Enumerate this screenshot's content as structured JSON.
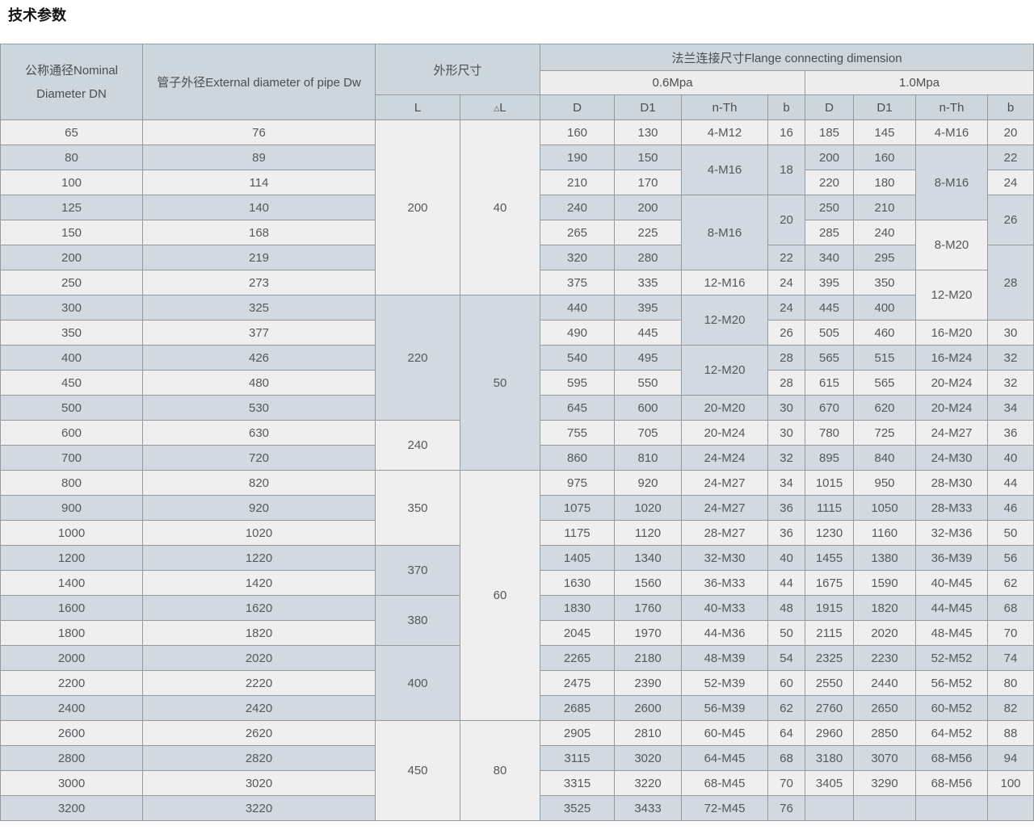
{
  "page_title": "技术参数",
  "colors": {
    "row_light": "#efefef",
    "row_blue": "#d2d9e0",
    "header_blue": "#cdd6dd",
    "pressure_band": "#ededed",
    "border": "#949b9f",
    "text": "#55585c"
  },
  "table": {
    "headers": {
      "nominal_diameter": "公称通径Nominal Diameter DN",
      "pipe_diameter": "管子外径External diameter of pipe Dw",
      "overall_size": "外形尺寸",
      "flange": "法兰连接尺寸Flange connecting dimension",
      "pressure_06": "0.6Mpa",
      "pressure_10": "1.0Mpa",
      "sub": [
        "L",
        "△L",
        "D",
        "D1",
        "n-Th",
        "b",
        "D",
        "D1",
        "n-Th",
        "b"
      ]
    },
    "column_order": [
      "DN",
      "Dw",
      "L",
      "△L",
      "D(0.6Mpa)",
      "D1(0.6Mpa)",
      "n-Th(0.6Mpa)",
      "b(0.6Mpa)",
      "D(1.0Mpa)",
      "D1(1.0Mpa)",
      "n-Th(1.0Mpa)",
      "b(1.0Mpa)"
    ],
    "rows": [
      [
        "65",
        "76",
        {
          "v": "200",
          "rs": 7
        },
        {
          "v": "40",
          "rs": 7
        },
        "160",
        "130",
        "4-M12",
        "16",
        "185",
        "145",
        "4-M16",
        "20"
      ],
      [
        "80",
        "89",
        "190",
        "150",
        {
          "v": "4-M16",
          "rs": 2
        },
        {
          "v": "18",
          "rs": 2
        },
        "200",
        "160",
        {
          "v": "8-M16",
          "rs": 3
        },
        "22"
      ],
      [
        "100",
        "114",
        "210",
        "170",
        "220",
        "180",
        "24"
      ],
      [
        "125",
        "140",
        "240",
        "200",
        {
          "v": "8-M16",
          "rs": 3
        },
        {
          "v": "20",
          "rs": 2
        },
        "250",
        "210",
        {
          "v": "26",
          "rs": 2
        }
      ],
      [
        "150",
        "168",
        "265",
        "225",
        "285",
        "240",
        {
          "v": "8-M20",
          "rs": 2
        }
      ],
      [
        "200",
        "219",
        "320",
        "280",
        "22",
        "340",
        "295",
        {
          "v": "28",
          "rs": 3
        }
      ],
      [
        "250",
        "273",
        "375",
        "335",
        "12-M16",
        "24",
        "395",
        "350",
        {
          "v": "12-M20",
          "rs": 2
        }
      ],
      [
        "300",
        "325",
        {
          "v": "220",
          "rs": 5
        },
        {
          "v": "50",
          "rs": 7
        },
        "440",
        "395",
        {
          "v": "12-M20",
          "rs": 2
        },
        "24",
        "445",
        "400"
      ],
      [
        "350",
        "377",
        "490",
        "445",
        "26",
        "505",
        "460",
        "16-M20",
        "30"
      ],
      [
        "400",
        "426",
        "540",
        "495",
        {
          "v": "12-M20",
          "rs": 2
        },
        "28",
        "565",
        "515",
        "16-M24",
        "32"
      ],
      [
        "450",
        "480",
        "595",
        "550",
        "28",
        "615",
        "565",
        "20-M24",
        "32"
      ],
      [
        "500",
        "530",
        "645",
        "600",
        "20-M20",
        "30",
        "670",
        "620",
        "20-M24",
        "34"
      ],
      [
        "600",
        "630",
        {
          "v": "240",
          "rs": 2
        },
        "755",
        "705",
        "20-M24",
        "30",
        "780",
        "725",
        "24-M27",
        "36"
      ],
      [
        "700",
        "720",
        "860",
        "810",
        "24-M24",
        "32",
        "895",
        "840",
        "24-M30",
        "40"
      ],
      [
        "800",
        "820",
        {
          "v": "350",
          "rs": 3
        },
        {
          "v": "60",
          "rs": 10
        },
        "975",
        "920",
        "24-M27",
        "34",
        "1015",
        "950",
        "28-M30",
        "44"
      ],
      [
        "900",
        "920",
        "1075",
        "1020",
        "24-M27",
        "36",
        "1115",
        "1050",
        "28-M33",
        "46"
      ],
      [
        "1000",
        "1020",
        "1175",
        "1120",
        "28-M27",
        "36",
        "1230",
        "1160",
        "32-M36",
        "50"
      ],
      [
        "1200",
        "1220",
        {
          "v": "370",
          "rs": 2
        },
        "1405",
        "1340",
        "32-M30",
        "40",
        "1455",
        "1380",
        "36-M39",
        "56"
      ],
      [
        "1400",
        "1420",
        "1630",
        "1560",
        "36-M33",
        "44",
        "1675",
        "1590",
        "40-M45",
        "62"
      ],
      [
        "1600",
        "1620",
        {
          "v": "380",
          "rs": 2
        },
        "1830",
        "1760",
        "40-M33",
        "48",
        "1915",
        "1820",
        "44-M45",
        "68"
      ],
      [
        "1800",
        "1820",
        "2045",
        "1970",
        "44-M36",
        "50",
        "2115",
        "2020",
        "48-M45",
        "70"
      ],
      [
        "2000",
        "2020",
        {
          "v": "400",
          "rs": 3
        },
        "2265",
        "2180",
        "48-M39",
        "54",
        "2325",
        "2230",
        "52-M52",
        "74"
      ],
      [
        "2200",
        "2220",
        "2475",
        "2390",
        "52-M39",
        "60",
        "2550",
        "2440",
        "56-M52",
        "80"
      ],
      [
        "2400",
        "2420",
        "2685",
        "2600",
        "56-M39",
        "62",
        "2760",
        "2650",
        "60-M52",
        "82"
      ],
      [
        "2600",
        "2620",
        {
          "v": "450",
          "rs": 4
        },
        {
          "v": "80",
          "rs": 4
        },
        "2905",
        "2810",
        "60-M45",
        "64",
        "2960",
        "2850",
        "64-M52",
        "88"
      ],
      [
        "2800",
        "2820",
        "3115",
        "3020",
        "64-M45",
        "68",
        "3180",
        "3070",
        "68-M56",
        "94"
      ],
      [
        "3000",
        "3020",
        "3315",
        "3220",
        "68-M45",
        "70",
        "3405",
        "3290",
        "68-M56",
        "100"
      ],
      [
        "3200",
        "3220",
        "3525",
        "3433",
        "72-M45",
        "76",
        "",
        "",
        "",
        ""
      ]
    ]
  }
}
